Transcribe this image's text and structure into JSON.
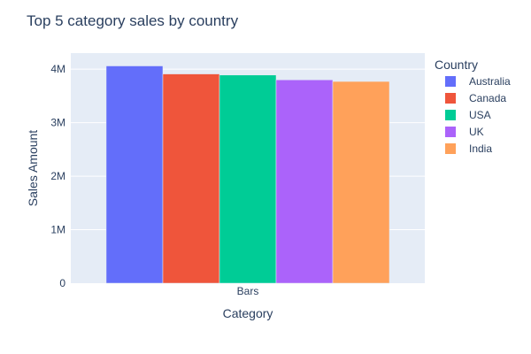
{
  "chart_data": {
    "type": "bar",
    "title": "Top 5 category sales by country",
    "xlabel": "Category",
    "ylabel": "Sales Amount",
    "categories": [
      "Bars"
    ],
    "ylim": [
      0,
      4300000
    ],
    "yticks": [
      {
        "value": 0,
        "label": "0"
      },
      {
        "value": 1000000,
        "label": "1M"
      },
      {
        "value": 2000000,
        "label": "2M"
      },
      {
        "value": 3000000,
        "label": "3M"
      },
      {
        "value": 4000000,
        "label": "4M"
      }
    ],
    "grid": true,
    "legend": {
      "title": "Country",
      "position": "right"
    },
    "series": [
      {
        "name": "Australia",
        "values": [
          4060000
        ],
        "color": "#636efa"
      },
      {
        "name": "Canada",
        "values": [
          3910000
        ],
        "color": "#ef553b"
      },
      {
        "name": "USA",
        "values": [
          3890000
        ],
        "color": "#00cc96"
      },
      {
        "name": "UK",
        "values": [
          3800000
        ],
        "color": "#ab63fa"
      },
      {
        "name": "India",
        "values": [
          3770000
        ],
        "color": "#ffa15a"
      }
    ]
  }
}
